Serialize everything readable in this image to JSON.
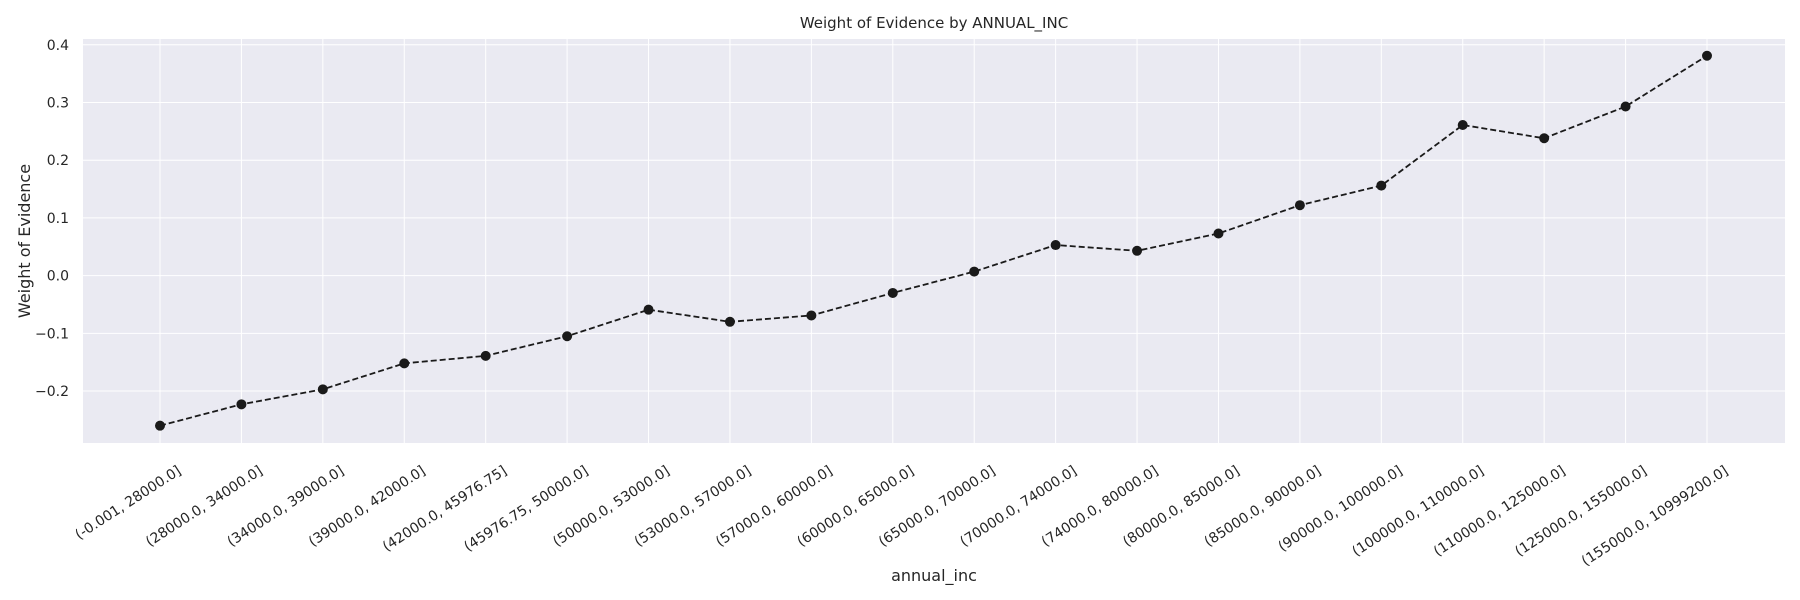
{
  "chart_data": {
    "type": "line",
    "title": "Weight of Evidence by ANNUAL_INC",
    "xlabel": "annual_inc",
    "ylabel": "Weight of Evidence",
    "categories": [
      "(-0.001, 28000.0]",
      "(28000.0, 34000.0]",
      "(34000.0, 39000.0]",
      "(39000.0, 42000.0]",
      "(42000.0, 45976.75]",
      "(45976.75, 50000.0]",
      "(50000.0, 53000.0]",
      "(53000.0, 57000.0]",
      "(57000.0, 60000.0]",
      "(60000.0, 65000.0]",
      "(65000.0, 70000.0]",
      "(70000.0, 74000.0]",
      "(74000.0, 80000.0]",
      "(80000.0, 85000.0]",
      "(85000.0, 90000.0]",
      "(90000.0, 100000.0]",
      "(100000.0, 110000.0]",
      "(110000.0, 125000.0]",
      "(125000.0, 155000.0]",
      "(155000.0, 10999200.0]"
    ],
    "series": [
      {
        "values": [
          -0.26,
          -0.223,
          -0.197,
          -0.152,
          -0.139,
          -0.105,
          -0.059,
          -0.08,
          -0.069,
          -0.03,
          0.007,
          0.053,
          0.043,
          0.073,
          0.122,
          0.156,
          0.261,
          0.238,
          0.293,
          0.381
        ]
      }
    ],
    "ylim": [
      -0.29,
      0.41
    ],
    "yticks": [
      -0.2,
      -0.1,
      0.0,
      0.1,
      0.2,
      0.3,
      0.4
    ],
    "ytick_labels": [
      "−0.2",
      "−0.1",
      "0.0",
      "0.1",
      "0.2",
      "0.3",
      "0.4"
    ],
    "grid": true,
    "line_style": "dashed",
    "marker": "circle",
    "colors": {
      "plot_background": "#eaeaf2",
      "grid": "#ffffff",
      "line": "#1a1a1a",
      "text": "#262626"
    }
  }
}
